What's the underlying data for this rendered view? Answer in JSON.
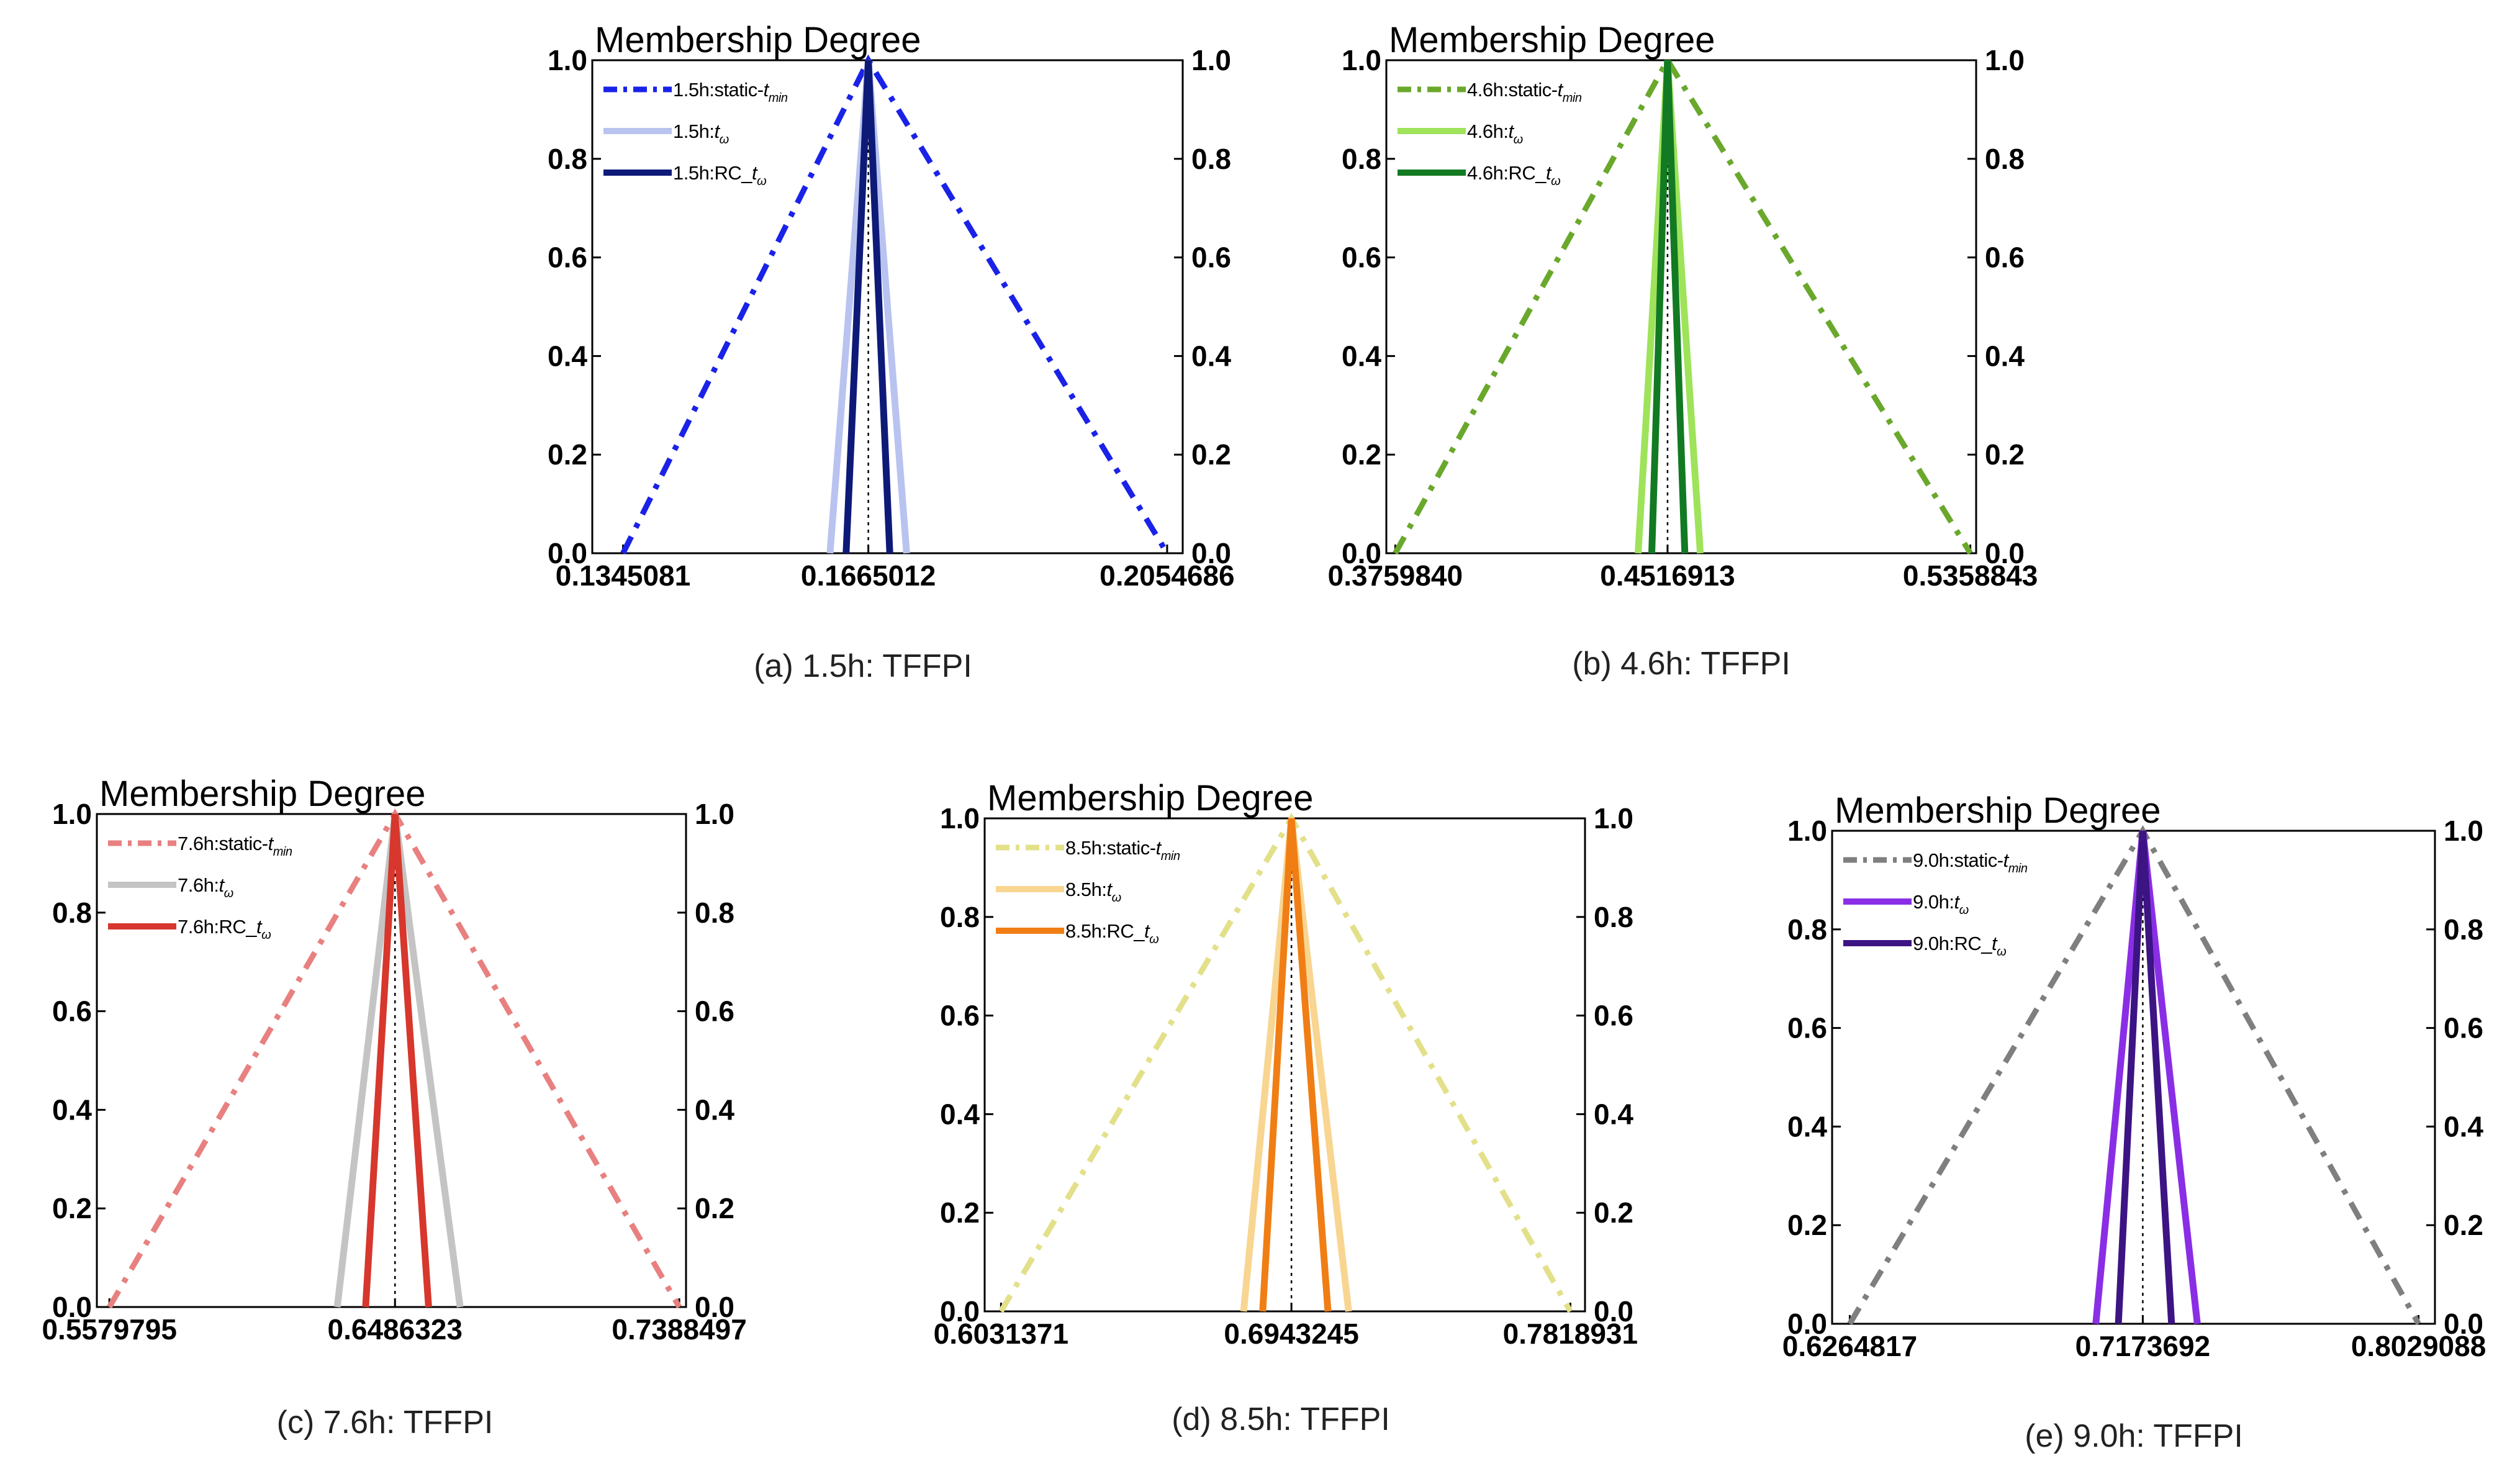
{
  "chart_data": [
    {
      "type": "line",
      "caption": "(a) 1.5h: TFFPI",
      "ylabel": "Membership Degree",
      "yticks": [
        "0.0",
        "0.2",
        "0.4",
        "0.6",
        "0.8",
        "1.0"
      ],
      "ylim": [
        0,
        1
      ],
      "xlim": [
        0.1305,
        0.2075
      ],
      "xticks": [
        {
          "value": 0.1345081,
          "label": "0.1345081"
        },
        {
          "value": 0.1665012,
          "label": "0.1665012"
        },
        {
          "value": 0.2054686,
          "label": "0.2054686"
        }
      ],
      "center": 0.1665012,
      "series": [
        {
          "name": "1.5h:static-t_min",
          "label": "1.5h:static-",
          "sub": "min",
          "color": "#1a22e8",
          "style": "dashdot",
          "x": [
            0.1345081,
            0.1665012,
            0.2054686
          ],
          "y": [
            0,
            1,
            0
          ]
        },
        {
          "name": "1.5h:t_ω",
          "label": "1.5h:",
          "sub": "ω",
          "color": "#b9c3f0",
          "style": "solid",
          "x": [
            0.1615,
            0.1665012,
            0.1715
          ],
          "y": [
            0,
            1,
            0
          ]
        },
        {
          "name": "1.5h:RC_t_ω",
          "label": "1.5h:RC_",
          "sub": "ω",
          "color": "#0d1a78",
          "style": "solid",
          "x": [
            0.1636,
            0.1665012,
            0.1693
          ],
          "y": [
            0,
            1,
            0
          ]
        }
      ]
    },
    {
      "type": "line",
      "caption": "(b) 4.6h: TFFPI",
      "ylabel": "Membership Degree",
      "yticks": [
        "0.0",
        "0.2",
        "0.4",
        "0.6",
        "0.8",
        "1.0"
      ],
      "ylim": [
        0,
        1
      ],
      "xlim": [
        0.3735,
        0.5375
      ],
      "xticks": [
        {
          "value": 0.375984,
          "label": "0.3759840"
        },
        {
          "value": 0.4516913,
          "label": "0.4516913"
        },
        {
          "value": 0.5358843,
          "label": "0.5358843"
        }
      ],
      "center": 0.4516913,
      "series": [
        {
          "name": "4.6h:static-t_min",
          "label": "4.6h:static-",
          "sub": "min",
          "color": "#6aa82c",
          "style": "dashdot",
          "x": [
            0.375984,
            0.4516913,
            0.5358843
          ],
          "y": [
            0,
            1,
            0
          ]
        },
        {
          "name": "4.6h:t_ω",
          "label": "4.6h:",
          "sub": "ω",
          "color": "#9ee35a",
          "style": "solid",
          "x": [
            0.4435,
            0.4516913,
            0.4608
          ],
          "y": [
            0,
            1,
            0
          ]
        },
        {
          "name": "4.6h:RC_t_ω",
          "label": "4.6h:RC_",
          "sub": "ω",
          "color": "#127a22",
          "style": "solid",
          "x": [
            0.4473,
            0.4516913,
            0.4565
          ],
          "y": [
            0,
            1,
            0
          ]
        }
      ]
    },
    {
      "type": "line",
      "caption": "(c) 7.6h: TFFPI",
      "ylabel": "Membership Degree",
      "yticks": [
        "0.0",
        "0.2",
        "0.4",
        "0.6",
        "0.8",
        "1.0"
      ],
      "ylim": [
        0,
        1
      ],
      "xlim": [
        0.554,
        0.741
      ],
      "xticks": [
        {
          "value": 0.5579795,
          "label": "0.5579795"
        },
        {
          "value": 0.6486323,
          "label": "0.6486323"
        },
        {
          "value": 0.7388497,
          "label": "0.7388497"
        }
      ],
      "center": 0.6486323,
      "series": [
        {
          "name": "7.6h:static-t_min",
          "label": "7.6h:static-",
          "sub": "min",
          "color": "#e88080",
          "style": "dashdot",
          "x": [
            0.5579795,
            0.6486323,
            0.7388497
          ],
          "y": [
            0,
            1,
            0
          ]
        },
        {
          "name": "7.6h:t_ω",
          "label": "7.6h:",
          "sub": "ω",
          "color": "#c4c4c4",
          "style": "solid",
          "x": [
            0.6303,
            0.6486323,
            0.6693
          ],
          "y": [
            0,
            1,
            0
          ]
        },
        {
          "name": "7.6h:RC_t_ω",
          "label": "7.6h:RC_",
          "sub": "ω",
          "color": "#d7372c",
          "style": "solid",
          "x": [
            0.6393,
            0.6486323,
            0.6593
          ],
          "y": [
            0,
            1,
            0
          ]
        }
      ]
    },
    {
      "type": "line",
      "caption": "(d) 8.5h: TFFPI",
      "ylabel": "Membership Degree",
      "yticks": [
        "0.0",
        "0.2",
        "0.4",
        "0.6",
        "0.8",
        "1.0"
      ],
      "ylim": [
        0,
        1
      ],
      "xlim": [
        0.598,
        0.7865
      ],
      "xticks": [
        {
          "value": 0.6031371,
          "label": "0.6031371"
        },
        {
          "value": 0.6943245,
          "label": "0.6943245"
        },
        {
          "value": 0.7818931,
          "label": "0.7818931"
        }
      ],
      "center": 0.6943245,
      "series": [
        {
          "name": "8.5h:static-t_min",
          "label": "8.5h:static-",
          "sub": "min",
          "color": "#e3e08a",
          "style": "dashdot",
          "x": [
            0.6031371,
            0.6943245,
            0.7818931
          ],
          "y": [
            0,
            1,
            0
          ]
        },
        {
          "name": "8.5h:t_ω",
          "label": "8.5h:",
          "sub": "ω",
          "color": "#f8d590",
          "style": "solid",
          "x": [
            0.6793,
            0.6943245,
            0.7123
          ],
          "y": [
            0,
            1,
            0
          ]
        },
        {
          "name": "8.5h:RC_t_ω",
          "label": "8.5h:RC_",
          "sub": "ω",
          "color": "#f07e14",
          "style": "solid",
          "x": [
            0.6853,
            0.6943245,
            0.7058
          ],
          "y": [
            0,
            1,
            0
          ]
        }
      ]
    },
    {
      "type": "line",
      "caption": "(e) 9.0h: TFFPI",
      "ylabel": "Membership Degree",
      "yticks": [
        "0.0",
        "0.2",
        "0.4",
        "0.6",
        "0.8",
        "1.0"
      ],
      "ylim": [
        0,
        1
      ],
      "xlim": [
        0.621,
        0.808
      ],
      "xticks": [
        {
          "value": 0.6264817,
          "label": "0.6264817"
        },
        {
          "value": 0.7173692,
          "label": "0.7173692"
        },
        {
          "value": 0.8029088,
          "label": "0.8029088"
        }
      ],
      "center": 0.7173692,
      "series": [
        {
          "name": "9.0h:static-t_min",
          "label": "9.0h:static-",
          "sub": "min",
          "color": "#7f7f7f",
          "style": "dashdot",
          "x": [
            0.6264817,
            0.7173692,
            0.8029088
          ],
          "y": [
            0,
            1,
            0
          ]
        },
        {
          "name": "9.0h:t_ω",
          "label": "9.0h:",
          "sub": "ω",
          "color": "#8a2ee6",
          "style": "solid",
          "x": [
            0.7028,
            0.7173692,
            0.7343
          ],
          "y": [
            0,
            1,
            0
          ]
        },
        {
          "name": "9.0h:RC_t_ω",
          "label": "9.0h:RC_",
          "sub": "ω",
          "color": "#3d1483",
          "style": "solid",
          "x": [
            0.7098,
            0.7173692,
            0.7263
          ],
          "y": [
            0,
            1,
            0
          ]
        }
      ]
    }
  ]
}
